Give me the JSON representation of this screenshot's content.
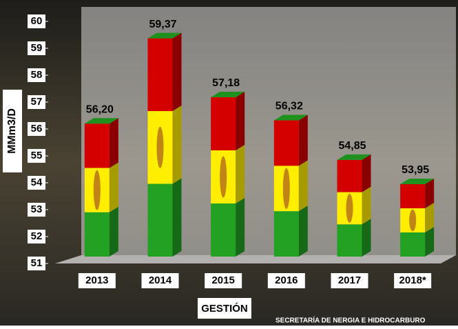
{
  "chart_data": {
    "type": "bar3d",
    "y_axis_label": "MMm3/D",
    "x_axis_label": "GESTIÓN",
    "source": "SECRETARÍA DE NERGIA E HIDROCARBURO",
    "categories": [
      "2013",
      "2014",
      "2015",
      "2016",
      "2017",
      "2018*"
    ],
    "values": [
      56.2,
      59.37,
      57.18,
      56.32,
      54.85,
      53.95
    ],
    "value_labels": [
      "56,20",
      "59,37",
      "57,18",
      "56,32",
      "54,85",
      "53,95"
    ],
    "segment_colors": [
      "#22a122",
      "#ffee00",
      "#d40000"
    ],
    "ylim": [
      51,
      60
    ],
    "yticks": [
      51,
      52,
      53,
      54,
      55,
      56,
      57,
      58,
      59,
      60
    ]
  }
}
